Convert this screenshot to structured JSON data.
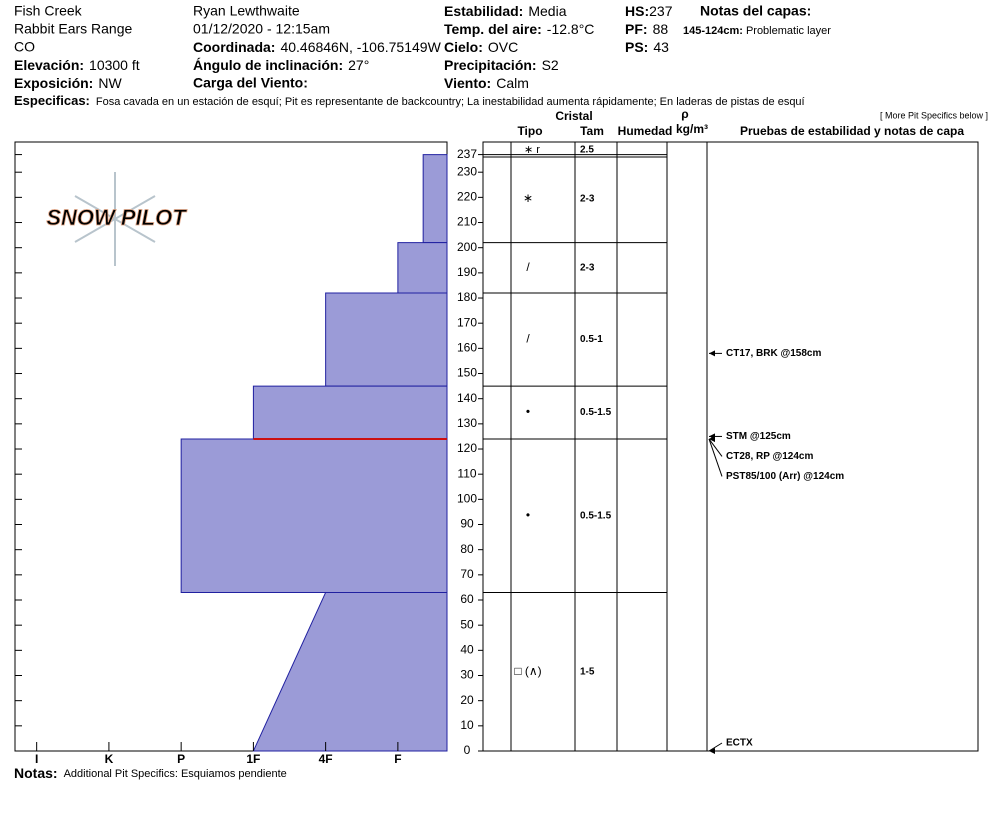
{
  "header": {
    "location": "Fish Creek",
    "range": "Rabbit Ears Range",
    "state": "CO",
    "elevation_label": "Elevación:",
    "elevation": "10300 ft",
    "aspect_label": "Exposición:",
    "aspect": "NW",
    "observer": "Ryan Lewthwaite",
    "datetime": "01/12/2020 - 12:15am",
    "coord_label": "Coordinada:",
    "coord": "40.46846N, -106.75149W",
    "slope_label": "Ángulo de inclinación:",
    "slope": "27°",
    "wind_load_label": "Carga del Viento:",
    "stability_label": "Estabilidad:",
    "stability": "Media",
    "air_temp_label": "Temp. del aire:",
    "air_temp": "-12.8°C",
    "sky_label": "Cielo:",
    "sky": "OVC",
    "precip_label": "Precipitación:",
    "precip": "S2",
    "wind_label": "Viento:",
    "wind": "Calm",
    "hs_label": "HS:",
    "hs": "237",
    "pf_label": "PF:",
    "pf": "88",
    "ps_label": "PS:",
    "ps": "43",
    "notes_title": "Notas del capas:",
    "layer_note_depth": "145-124cm:",
    "layer_note": "Problematic layer",
    "specifics_label": "Especificas:",
    "specifics": "Fosa cavada en un estación de esquí; Pit es representante de backcountry; La inestabilidad aumenta rápidamente; En laderas de pistas de esquí"
  },
  "chart_data": {
    "type": "snow-profile",
    "logo": "SNOW PILOT",
    "xlim": [
      6.3,
      0.32
    ],
    "xticks": [
      {
        "value": 6,
        "label": "I"
      },
      {
        "value": 5,
        "label": "K"
      },
      {
        "value": 4,
        "label": "P"
      },
      {
        "value": 3,
        "label": "1F"
      },
      {
        "value": 2,
        "label": "4F"
      },
      {
        "value": 1,
        "label": "F"
      }
    ],
    "ylim": [
      0,
      242
    ],
    "yticks": [
      0,
      10,
      20,
      30,
      40,
      50,
      60,
      70,
      80,
      90,
      100,
      110,
      120,
      130,
      140,
      150,
      160,
      170,
      180,
      190,
      200,
      210,
      220,
      230,
      237
    ],
    "color": "#9b9bd7",
    "edge_color": "#2020a0",
    "critical_depth": 124,
    "critical_color": "#cc1010",
    "columns": {
      "crystal": "Cristal",
      "type": "Tipo",
      "size": "Tam",
      "moisture": "Humedad",
      "rho": "ρ",
      "density_unit": "kg/m³",
      "tests": "Pruebas de estabilidad y notas de capa",
      "more": "[ More Pit Specifics below ]"
    },
    "surface": {
      "grain": "∗ r",
      "size": "2.5"
    },
    "layers": [
      {
        "top": 237,
        "bottom": 202,
        "hardness": 0.65,
        "grain": "∗",
        "size": "2-3"
      },
      {
        "top": 202,
        "bottom": 182,
        "hardness": 1,
        "grain": "/",
        "size": "2-3"
      },
      {
        "top": 182,
        "bottom": 145,
        "hardness": 2,
        "grain": "/",
        "size": "0.5-1"
      },
      {
        "top": 145,
        "bottom": 124,
        "hardness": 3,
        "grain": "•",
        "size": "0.5-1.5"
      },
      {
        "top": 124,
        "bottom": 63,
        "hardness": 4,
        "grain": "•",
        "size": "0.5-1.5"
      },
      {
        "top": 63,
        "bottom": 0,
        "hardness": 2,
        "hardness_bottom": 3,
        "grain": "□ (∧)",
        "size": "1-5"
      }
    ],
    "tests": [
      {
        "depth": 158,
        "label": "CT17, BRK @158cm"
      },
      {
        "depth": 125,
        "label": "STM @125cm"
      },
      {
        "depth": 124,
        "label": "CT28, RP @124cm"
      },
      {
        "depth": 124,
        "label": "PST85/100 (Arr) @124cm"
      },
      {
        "depth": 0,
        "label": "ECTX"
      }
    ]
  },
  "notes": {
    "label": "Notas:",
    "text": "Additional Pit Specifics: Esquiamos pendiente"
  }
}
